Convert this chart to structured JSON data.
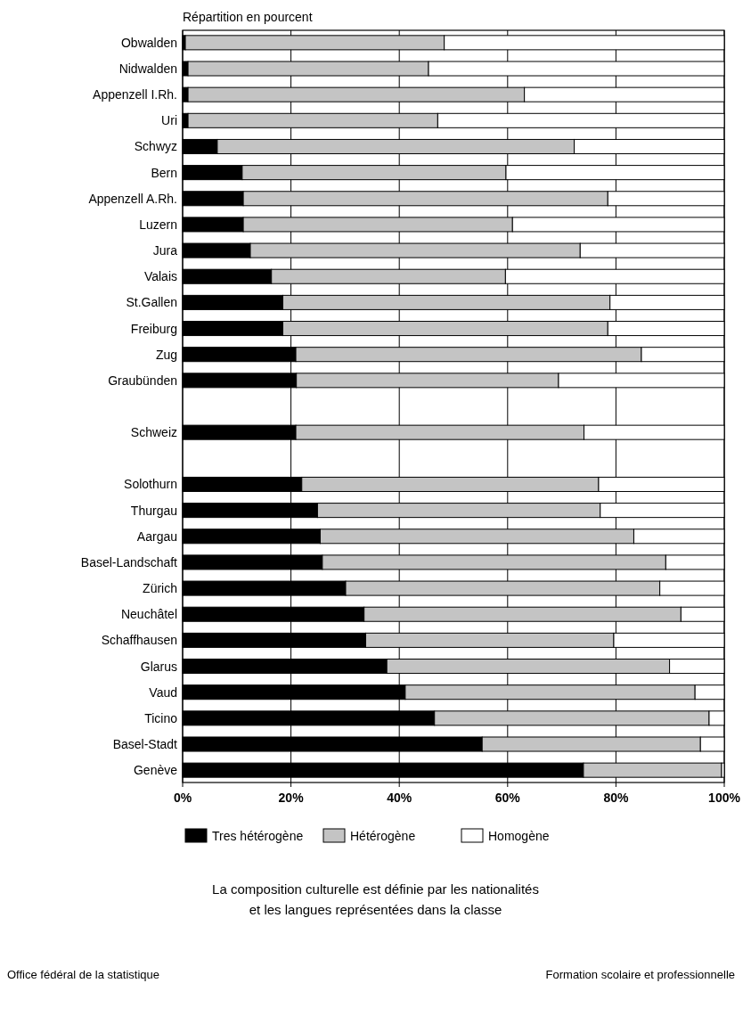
{
  "chart_data": {
    "type": "bar",
    "orientation": "horizontal",
    "stacked": true,
    "title": "Répartition en pourcent",
    "categories": [
      "Obwalden",
      "Nidwalden",
      "Appenzell I.Rh.",
      "Uri",
      "Schwyz",
      "Bern",
      "Appenzell A.Rh.",
      "Luzern",
      "Jura",
      "Valais",
      "St.Gallen",
      "Freiburg",
      "Zug",
      "Graubünden",
      null,
      "Schweiz",
      null,
      "Solothurn",
      "Thurgau",
      "Aargau",
      "Basel-Landschaft",
      "Zürich",
      "Neuchâtel",
      "Schaffhausen",
      "Glarus",
      "Vaud",
      "Ticino",
      "Basel-Stadt",
      "Genève"
    ],
    "series": [
      {
        "name": "Tres hétérogène",
        "color": "#000000",
        "values": [
          0.5,
          1,
          1,
          1,
          6.4,
          11,
          11.2,
          11.2,
          12.5,
          16.4,
          18.5,
          18.5,
          20.9,
          21,
          null,
          20.9,
          null,
          22,
          24.9,
          25.4,
          25.8,
          30.1,
          33.5,
          33.8,
          37.7,
          41.1,
          46.5,
          55.3,
          74
        ]
      },
      {
        "name": "Hétérogène",
        "color": "#c4c4c4",
        "values": [
          47.8,
          44.4,
          62.1,
          46.1,
          65.9,
          48.7,
          67.3,
          49.7,
          60.9,
          43.2,
          60.4,
          60,
          63.8,
          48.4,
          null,
          53.2,
          null,
          54.8,
          52.2,
          57.9,
          63.4,
          58,
          58.5,
          45.8,
          52.2,
          53.5,
          50.7,
          40.3,
          25.5
        ]
      },
      {
        "name": "Homogène",
        "color": "#ffffff",
        "values": [
          51.7,
          54.6,
          36.9,
          52.9,
          27.7,
          40.3,
          21.5,
          39.1,
          26.6,
          40.4,
          21.1,
          21.5,
          15.3,
          30.6,
          null,
          25.9,
          null,
          23.2,
          22.9,
          16.7,
          10.8,
          11.9,
          8,
          20.4,
          10.1,
          5.4,
          2.8,
          4.4,
          0.5
        ]
      }
    ],
    "xlim": [
      0,
      100
    ],
    "xticks": [
      {
        "value": 0,
        "label": "0%"
      },
      {
        "value": 20,
        "label": "20%"
      },
      {
        "value": 40,
        "label": "40%"
      },
      {
        "value": 60,
        "label": "60%"
      },
      {
        "value": 80,
        "label": "80%"
      },
      {
        "value": 100,
        "label": "100%"
      }
    ],
    "grid": "x",
    "legend": "bottom",
    "annotations": [
      "La composition culturelle est définie par les nationalités",
      "et les langues représentées dans la classe",
      "Office fédéral de la statistique",
      "Formation scolaire et professionnelle"
    ]
  }
}
